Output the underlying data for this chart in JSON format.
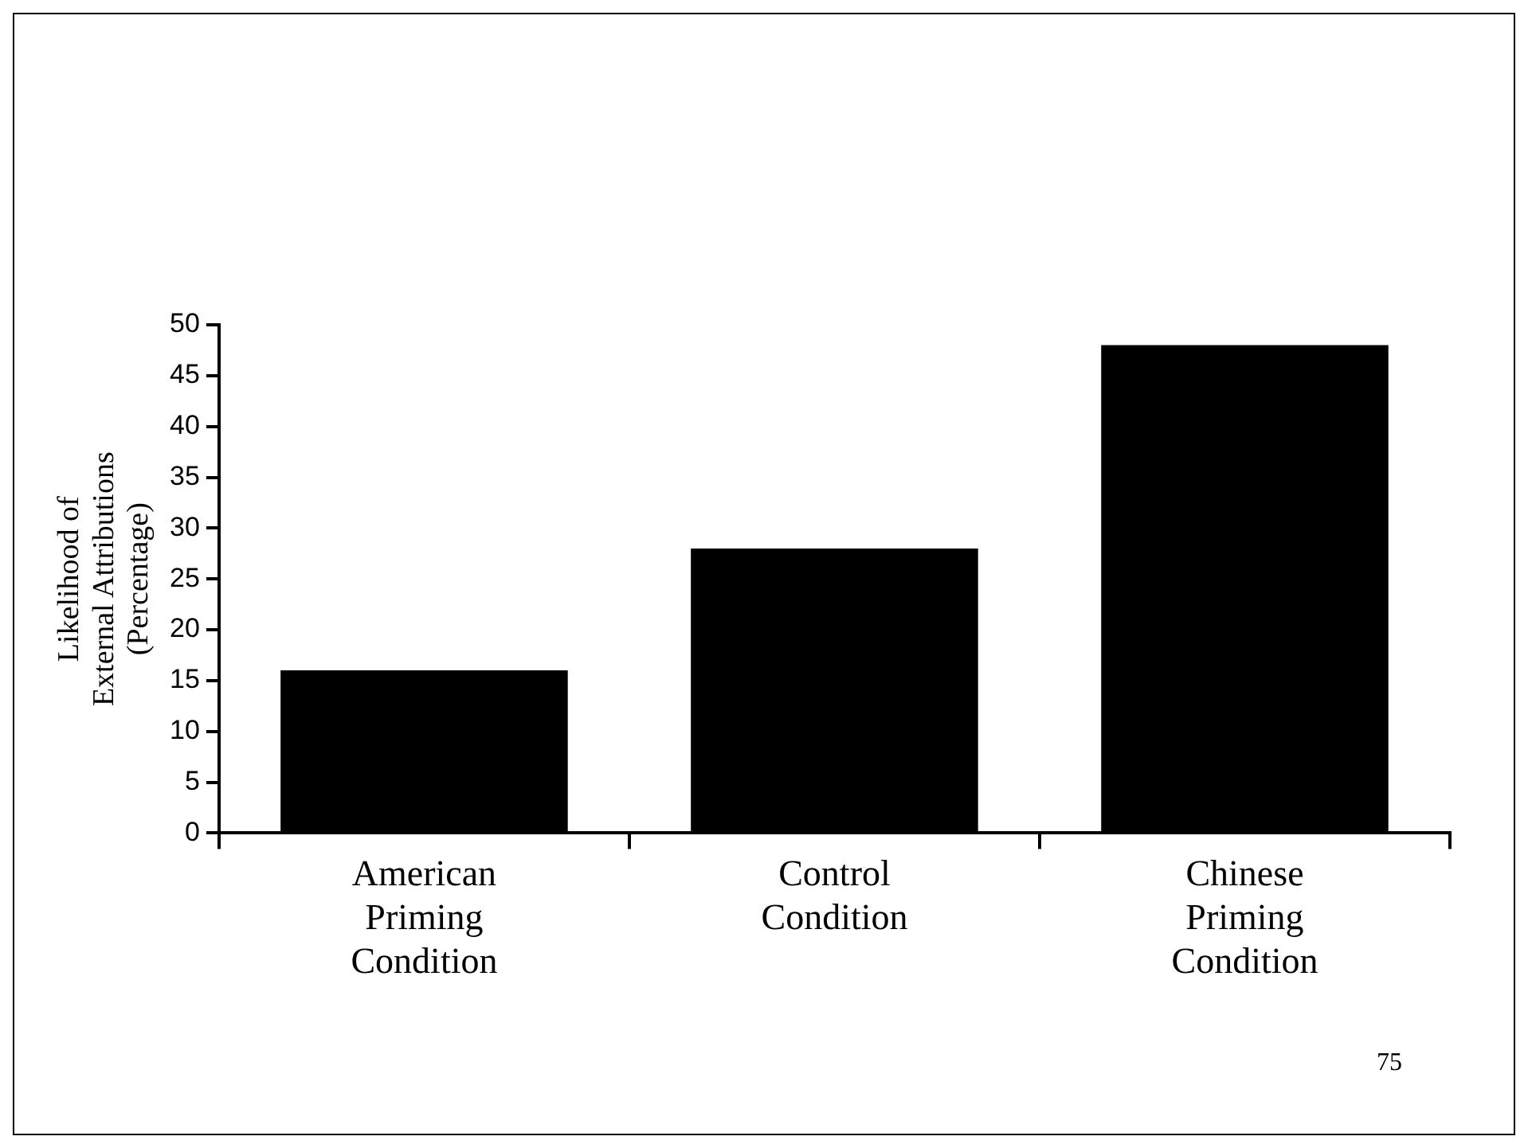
{
  "chart_data": {
    "type": "bar",
    "categories": [
      "American Priming Condition",
      "Control Condition",
      "Chinese Priming Condition"
    ],
    "values": [
      16,
      28,
      48
    ],
    "color": "#000000",
    "ylabel": "Likelihood of External Attributions (Percentage)",
    "ylim": [
      0,
      50
    ],
    "yticks": [
      0,
      5,
      10,
      15,
      20,
      25,
      30,
      35,
      40,
      45,
      50
    ],
    "grid": false,
    "legend": false,
    "annotations": [
      "75"
    ]
  }
}
